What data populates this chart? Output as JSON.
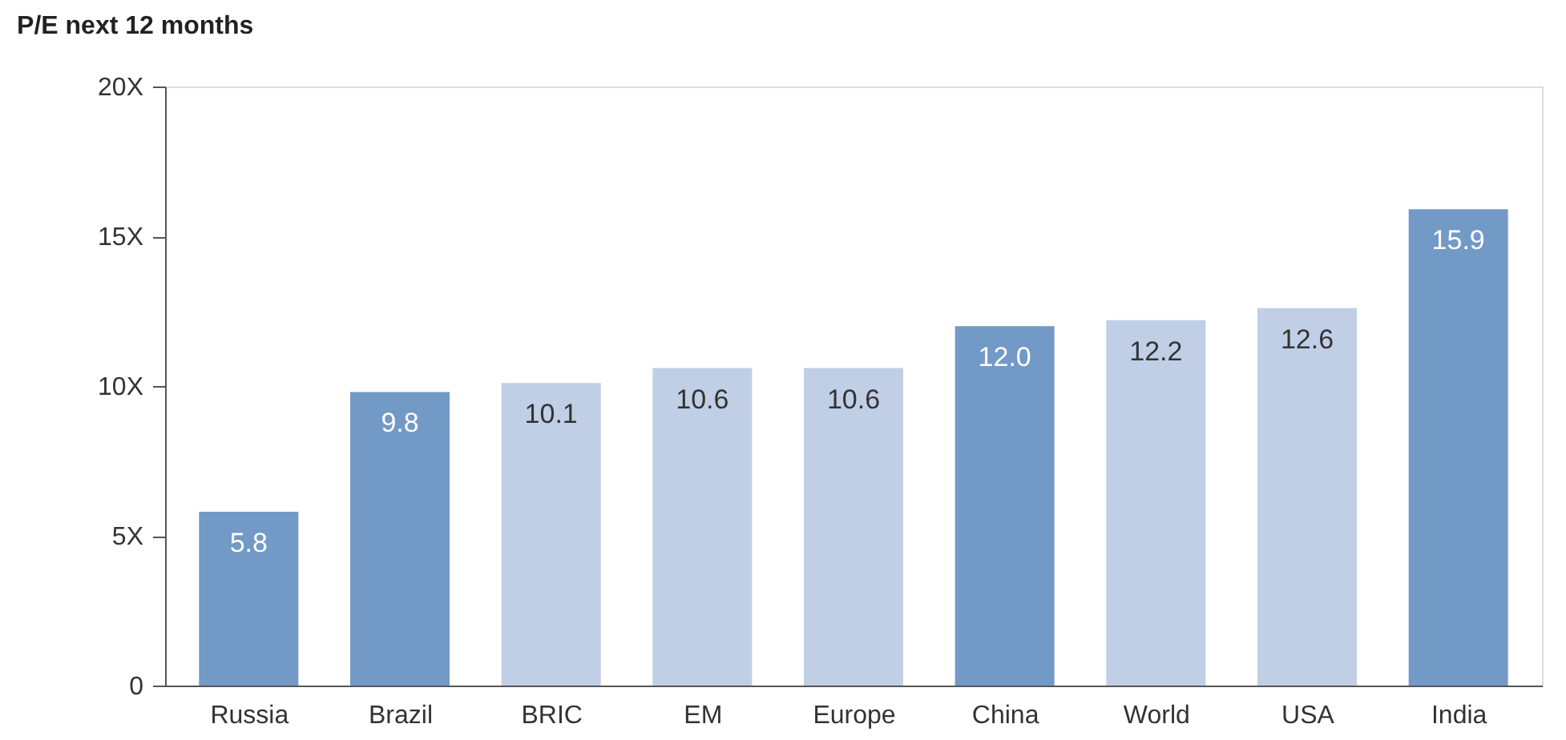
{
  "chart_data": {
    "type": "bar",
    "title": "P/E next 12 months",
    "categories": [
      "Russia",
      "Brazil",
      "BRIC",
      "EM",
      "Europe",
      "China",
      "World",
      "USA",
      "India"
    ],
    "values": [
      5.8,
      9.8,
      10.1,
      10.6,
      10.6,
      12.0,
      12.2,
      12.6,
      15.9
    ],
    "value_labels": [
      "5.8",
      "9.8",
      "10.1",
      "10.6",
      "10.6",
      "12.0",
      "12.2",
      "12.6",
      "15.9"
    ],
    "colors": [
      "#7399c6",
      "#7399c6",
      "#c0cfe6",
      "#c0cfe6",
      "#c0cfe6",
      "#7399c6",
      "#c0cfe6",
      "#c0cfe6",
      "#7399c6"
    ],
    "ylim": [
      0,
      20
    ],
    "yticks": [
      0,
      {
        "value": 5,
        "label": "5X"
      },
      {
        "value": 10,
        "label": "10X"
      },
      {
        "value": 15,
        "label": "15X"
      },
      {
        "value": 20,
        "label": "20X"
      }
    ],
    "grid": false
  }
}
